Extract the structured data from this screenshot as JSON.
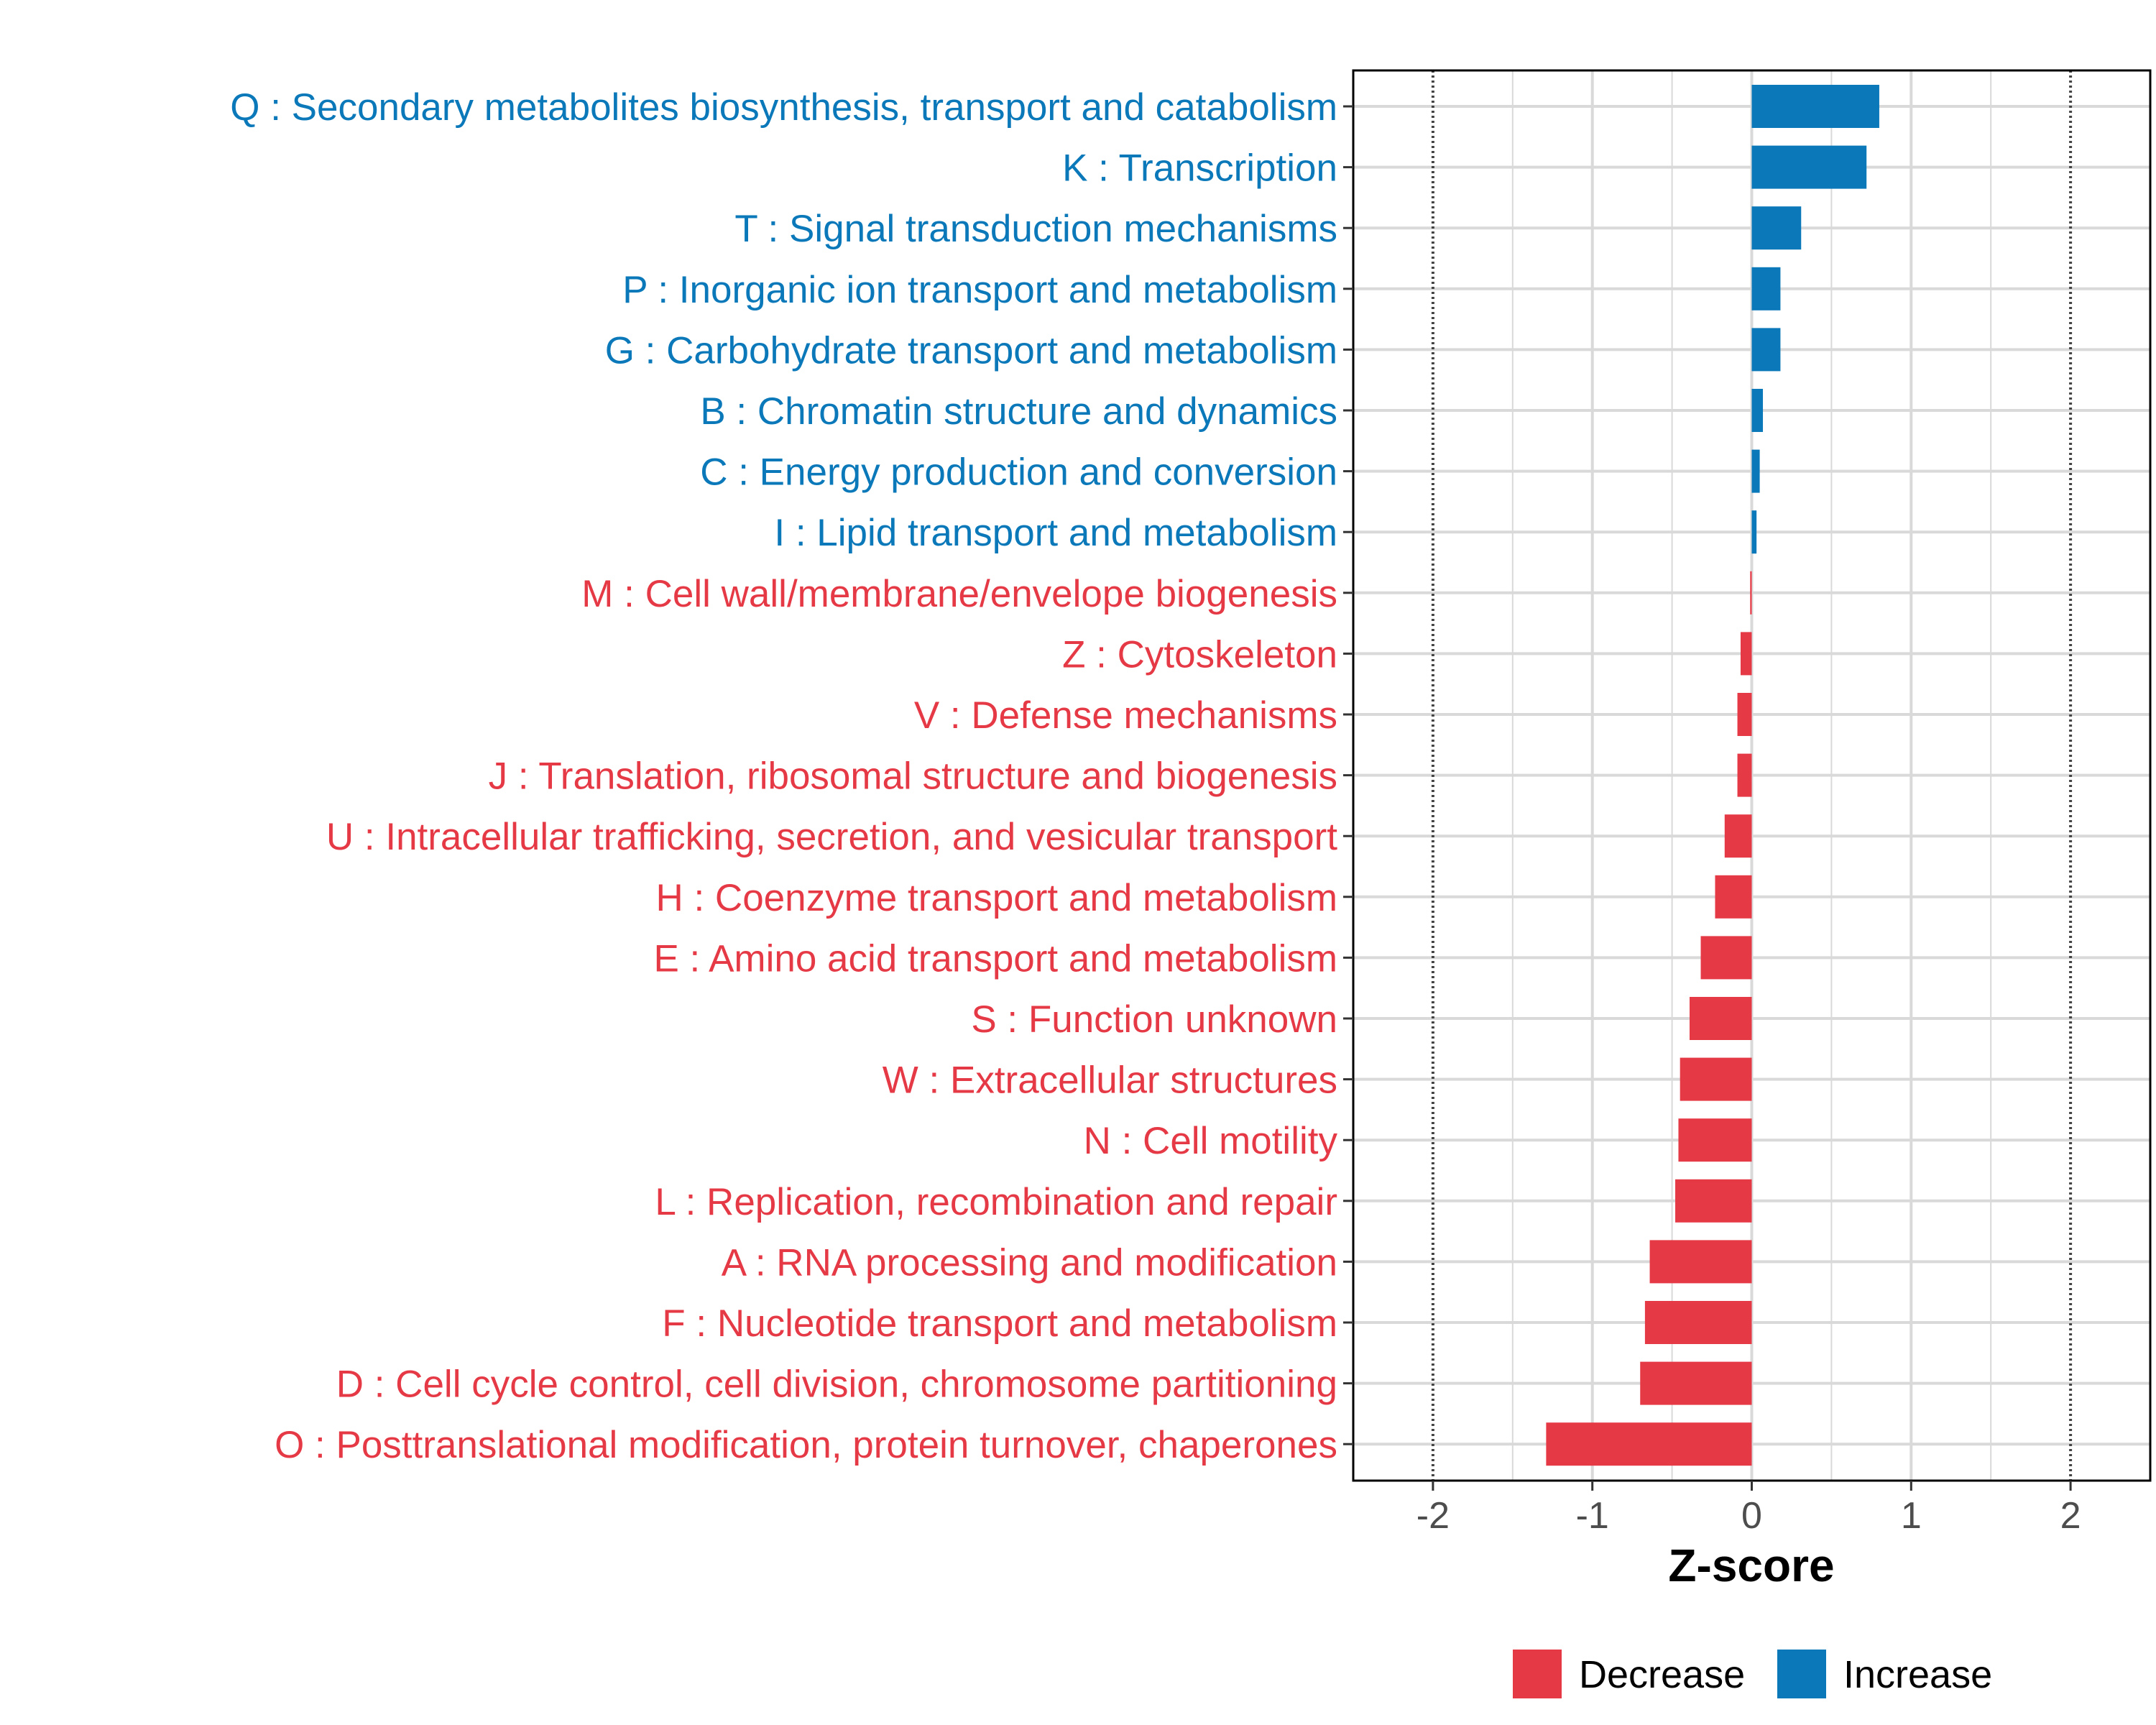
{
  "chart_data": {
    "type": "bar",
    "orientation": "horizontal",
    "xlabel": "Z-score",
    "xlim": [
      -2.5,
      2.5
    ],
    "xticks": [
      -2,
      -1,
      0,
      1,
      2
    ],
    "xtick_labels": [
      "-2",
      "-1",
      "0",
      "1",
      "2"
    ],
    "reference_lines": [
      -2,
      2
    ],
    "grid": true,
    "legend_position": "bottom-right",
    "colors": {
      "increase": "#0a78b9",
      "decrease": "#e63946"
    },
    "legend": [
      {
        "key": "decrease",
        "label": "Decrease"
      },
      {
        "key": "increase",
        "label": "Increase"
      }
    ],
    "categories": [
      {
        "label": "Q : Secondary metabolites biosynthesis, transport and catabolism",
        "value": 0.8,
        "direction": "increase"
      },
      {
        "label": "K : Transcription",
        "value": 0.72,
        "direction": "increase"
      },
      {
        "label": "T : Signal transduction mechanisms",
        "value": 0.31,
        "direction": "increase"
      },
      {
        "label": "P : Inorganic ion transport and metabolism",
        "value": 0.18,
        "direction": "increase"
      },
      {
        "label": "G : Carbohydrate transport and metabolism",
        "value": 0.18,
        "direction": "increase"
      },
      {
        "label": "B : Chromatin structure and dynamics",
        "value": 0.07,
        "direction": "increase"
      },
      {
        "label": "C : Energy production and conversion",
        "value": 0.05,
        "direction": "increase"
      },
      {
        "label": "I : Lipid transport and metabolism",
        "value": 0.03,
        "direction": "increase"
      },
      {
        "label": "M : Cell wall/membrane/envelope biogenesis",
        "value": -0.01,
        "direction": "decrease"
      },
      {
        "label": "Z : Cytoskeleton",
        "value": -0.07,
        "direction": "decrease"
      },
      {
        "label": "V : Defense mechanisms",
        "value": -0.09,
        "direction": "decrease"
      },
      {
        "label": "J : Translation, ribosomal structure and biogenesis",
        "value": -0.09,
        "direction": "decrease"
      },
      {
        "label": "U : Intracellular trafficking, secretion, and vesicular transport",
        "value": -0.17,
        "direction": "decrease"
      },
      {
        "label": "H : Coenzyme transport and metabolism",
        "value": -0.23,
        "direction": "decrease"
      },
      {
        "label": "E : Amino acid transport and metabolism",
        "value": -0.32,
        "direction": "decrease"
      },
      {
        "label": "S : Function unknown",
        "value": -0.39,
        "direction": "decrease"
      },
      {
        "label": "W : Extracellular structures",
        "value": -0.45,
        "direction": "decrease"
      },
      {
        "label": "N : Cell motility",
        "value": -0.46,
        "direction": "decrease"
      },
      {
        "label": "L : Replication, recombination and repair",
        "value": -0.48,
        "direction": "decrease"
      },
      {
        "label": "A : RNA processing and modification",
        "value": -0.64,
        "direction": "decrease"
      },
      {
        "label": "F : Nucleotide transport and metabolism",
        "value": -0.67,
        "direction": "decrease"
      },
      {
        "label": "D : Cell cycle control, cell division, chromosome partitioning",
        "value": -0.7,
        "direction": "decrease"
      },
      {
        "label": "O : Posttranslational modification, protein turnover, chaperones",
        "value": -1.29,
        "direction": "decrease"
      }
    ]
  }
}
